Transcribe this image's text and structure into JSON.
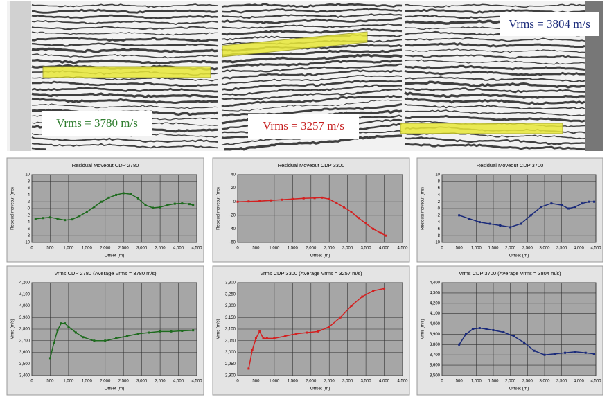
{
  "seismic": {
    "labels": [
      {
        "text": "Vrms = 3780 m/s",
        "color": "#2e7d2e"
      },
      {
        "text": "Vrms = 3257 m/s",
        "color": "#c62020"
      },
      {
        "text": "Vrms = 3804 m/s",
        "color": "#1a2a7a"
      }
    ]
  },
  "chart_data": [
    {
      "type": "line",
      "title": "Residual Moveout CDP 2780",
      "x_label": "Offset (m)",
      "y_label": "Residual moveout (ms)",
      "color": "#1e6b1e",
      "x": [
        100,
        300,
        500,
        700,
        900,
        1100,
        1300,
        1500,
        1700,
        1900,
        2100,
        2300,
        2500,
        2700,
        2900,
        3100,
        3300,
        3500,
        3700,
        3900,
        4100,
        4300,
        4400
      ],
      "values": [
        -3,
        -2.8,
        -2.6,
        -3,
        -3.4,
        -3.2,
        -2.2,
        -1,
        0.5,
        2,
        3.2,
        4,
        4.5,
        4.2,
        3,
        1,
        0.2,
        0.4,
        1,
        1.4,
        1.5,
        1.3,
        1
      ],
      "xlim": [
        0,
        4500
      ],
      "xticks": [
        0,
        500,
        {
          "value": 1000,
          "label": "1,000"
        },
        {
          "value": 1500,
          "label": "1,500"
        },
        {
          "value": 2000,
          "label": "2,000"
        },
        {
          "value": 2500,
          "label": "2,500"
        },
        {
          "value": 3000,
          "label": "3,000"
        },
        {
          "value": 3500,
          "label": "3,500"
        },
        {
          "value": 4000,
          "label": "4,000"
        },
        {
          "value": 4500,
          "label": "4,500"
        }
      ],
      "ylim": [
        -10,
        10
      ],
      "yticks": [
        -10,
        -8,
        -6,
        -4,
        -2,
        0,
        2,
        4,
        6,
        8,
        10
      ]
    },
    {
      "type": "line",
      "title": "Residual Moveout CDP 3300",
      "x_label": "Offset (m)",
      "y_label": "Residual moveout (ms)",
      "color": "#d42020",
      "x": [
        0,
        300,
        600,
        900,
        1200,
        1500,
        1800,
        2100,
        2300,
        2500,
        2700,
        2900,
        3100,
        3300,
        3500,
        3700,
        3900,
        4050
      ],
      "values": [
        0,
        0.5,
        1,
        2,
        3,
        4,
        5,
        5.5,
        6,
        4,
        -2,
        -8,
        -15,
        -24,
        -32,
        -40,
        -46,
        -50
      ],
      "xlim": [
        0,
        4500
      ],
      "xticks": [
        0,
        500,
        {
          "value": 1000,
          "label": "1,000"
        },
        {
          "value": 1500,
          "label": "1,500"
        },
        {
          "value": 2000,
          "label": "2,000"
        },
        {
          "value": 2500,
          "label": "2,500"
        },
        {
          "value": 3000,
          "label": "3,000"
        },
        {
          "value": 3500,
          "label": "3,500"
        },
        {
          "value": 4000,
          "label": "4,000"
        },
        {
          "value": 4500,
          "label": "4,500"
        }
      ],
      "ylim": [
        -60,
        40
      ],
      "yticks": [
        -60,
        -40,
        -20,
        0,
        20,
        40
      ]
    },
    {
      "type": "line",
      "title": "Residual Moveout CDP 3700",
      "x_label": "Offset (m)",
      "y_label": "Residual moveout (ms)",
      "color": "#1a2a7a",
      "x": [
        500,
        800,
        1100,
        1400,
        1700,
        2000,
        2300,
        2600,
        2900,
        3200,
        3500,
        3700,
        3900,
        4100,
        4300,
        4450
      ],
      "values": [
        -2,
        -3,
        -4,
        -4.5,
        -5,
        -5.5,
        -4.5,
        -2,
        0.5,
        1.5,
        1,
        0,
        0.5,
        1.5,
        2,
        2
      ],
      "xlim": [
        0,
        4500
      ],
      "xticks": [
        0,
        500,
        {
          "value": 1000,
          "label": "1,000"
        },
        {
          "value": 1500,
          "label": "1,500"
        },
        {
          "value": 2000,
          "label": "2,000"
        },
        {
          "value": 2500,
          "label": "2,500"
        },
        {
          "value": 3000,
          "label": "3,000"
        },
        {
          "value": 3500,
          "label": "3,500"
        },
        {
          "value": 4000,
          "label": "4,000"
        },
        {
          "value": 4500,
          "label": "4,500"
        }
      ],
      "ylim": [
        -10,
        10
      ],
      "yticks": [
        -10,
        -8,
        -6,
        -4,
        -2,
        0,
        2,
        4,
        6,
        8,
        10
      ]
    },
    {
      "type": "line",
      "title": "Vrms CDP 2780 (Average Vrms = 3780 m/s)",
      "x_label": "Offset (m)",
      "y_label": "Vrms (m/s)",
      "color": "#1e6b1e",
      "x": [
        500,
        600,
        700,
        800,
        900,
        1000,
        1200,
        1400,
        1700,
        2000,
        2300,
        2600,
        2900,
        3200,
        3500,
        3800,
        4100,
        4400
      ],
      "values": [
        3550,
        3680,
        3790,
        3850,
        3850,
        3820,
        3770,
        3730,
        3700,
        3700,
        3720,
        3740,
        3760,
        3770,
        3780,
        3780,
        3785,
        3790
      ],
      "xlim": [
        0,
        4500
      ],
      "xticks": [
        0,
        500,
        {
          "value": 1000,
          "label": "1,000"
        },
        {
          "value": 1500,
          "label": "1,500"
        },
        {
          "value": 2000,
          "label": "2,000"
        },
        {
          "value": 2500,
          "label": "2,500"
        },
        {
          "value": 3000,
          "label": "3,000"
        },
        {
          "value": 3500,
          "label": "3,500"
        },
        {
          "value": 4000,
          "label": "4,000"
        },
        {
          "value": 4500,
          "label": "4,500"
        }
      ],
      "ylim": [
        3400,
        4200
      ],
      "yticks": [
        {
          "value": 3400,
          "label": "3,400"
        },
        {
          "value": 3500,
          "label": "3,500"
        },
        {
          "value": 3600,
          "label": "3,600"
        },
        {
          "value": 3700,
          "label": "3,700"
        },
        {
          "value": 3800,
          "label": "3,800"
        },
        {
          "value": 3900,
          "label": "3,900"
        },
        {
          "value": 4000,
          "label": "4,000"
        },
        {
          "value": 4100,
          "label": "4,100"
        },
        {
          "value": 4200,
          "label": "4,200"
        }
      ]
    },
    {
      "type": "line",
      "title": "Vrms CDP 3300 (Average Vrms = 3257 m/s)",
      "x_label": "Offset (m)",
      "y_label": "Vrms (m/s)",
      "color": "#d42020",
      "x": [
        300,
        400,
        500,
        600,
        700,
        800,
        1000,
        1300,
        1600,
        1900,
        2200,
        2500,
        2800,
        3100,
        3400,
        3700,
        4000
      ],
      "values": [
        2930,
        3010,
        3060,
        3090,
        3060,
        3060,
        3060,
        3070,
        3080,
        3085,
        3090,
        3110,
        3150,
        3200,
        3240,
        3265,
        3275
      ],
      "xlim": [
        0,
        4500
      ],
      "xticks": [
        0,
        500,
        {
          "value": 1000,
          "label": "1,000"
        },
        {
          "value": 1500,
          "label": "1,500"
        },
        {
          "value": 2000,
          "label": "2,000"
        },
        {
          "value": 2500,
          "label": "2,500"
        },
        {
          "value": 3000,
          "label": "3,000"
        },
        {
          "value": 3500,
          "label": "3,500"
        },
        {
          "value": 4000,
          "label": "4,000"
        },
        {
          "value": 4500,
          "label": "4,500"
        }
      ],
      "ylim": [
        2900,
        3300
      ],
      "yticks": [
        {
          "value": 2900,
          "label": "2,900"
        },
        {
          "value": 2950,
          "label": "2,950"
        },
        {
          "value": 3000,
          "label": "3,000"
        },
        {
          "value": 3050,
          "label": "3,050"
        },
        {
          "value": 3100,
          "label": "3,100"
        },
        {
          "value": 3150,
          "label": "3,150"
        },
        {
          "value": 3200,
          "label": "3,200"
        },
        {
          "value": 3250,
          "label": "3,250"
        },
        {
          "value": 3300,
          "label": "3,300"
        }
      ]
    },
    {
      "type": "line",
      "title": "Vrms CDP 3700 (Average Vrms = 3804 m/s)",
      "x_label": "Offset (m)",
      "y_label": "Vrms (m/s)",
      "color": "#1a2a7a",
      "x": [
        500,
        700,
        900,
        1100,
        1300,
        1500,
        1800,
        2100,
        2400,
        2700,
        3000,
        3300,
        3600,
        3900,
        4200,
        4450
      ],
      "values": [
        3800,
        3900,
        3950,
        3960,
        3950,
        3940,
        3920,
        3880,
        3820,
        3740,
        3700,
        3710,
        3720,
        3730,
        3720,
        3710
      ],
      "xlim": [
        0,
        4500
      ],
      "xticks": [
        0,
        500,
        {
          "value": 1000,
          "label": "1,000"
        },
        {
          "value": 1500,
          "label": "1,500"
        },
        {
          "value": 2000,
          "label": "2,000"
        },
        {
          "value": 2500,
          "label": "2,500"
        },
        {
          "value": 3000,
          "label": "3,000"
        },
        {
          "value": 3500,
          "label": "3,500"
        },
        {
          "value": 4000,
          "label": "4,000"
        },
        {
          "value": 4500,
          "label": "4,500"
        }
      ],
      "ylim": [
        3500,
        4400
      ],
      "yticks": [
        {
          "value": 3500,
          "label": "3,500"
        },
        {
          "value": 3600,
          "label": "3,600"
        },
        {
          "value": 3700,
          "label": "3,700"
        },
        {
          "value": 3800,
          "label": "3,800"
        },
        {
          "value": 3900,
          "label": "3,900"
        },
        {
          "value": 4000,
          "label": "4,000"
        },
        {
          "value": 4100,
          "label": "4,100"
        },
        {
          "value": 4200,
          "label": "4,200"
        },
        {
          "value": 4300,
          "label": "4,300"
        },
        {
          "value": 4400,
          "label": "4,400"
        }
      ]
    }
  ]
}
